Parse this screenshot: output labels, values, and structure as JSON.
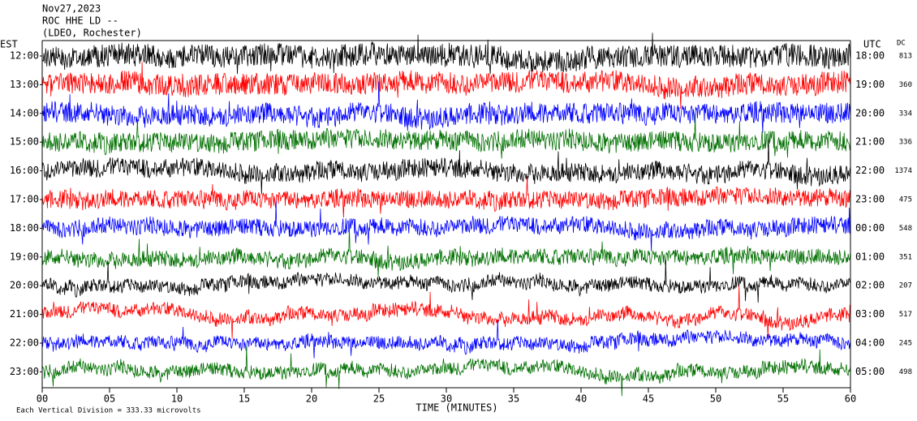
{
  "header": {
    "date": "Nov27,2023",
    "station": "ROC HHE LD --",
    "network": "(LDEO, Rochester)"
  },
  "chart_data": {
    "type": "helicorder",
    "left_axis_label": "EST",
    "right_axis_label": "UTC",
    "dc_label": "DC",
    "x_label": "TIME (MINUTES)",
    "footer": "Each Vertical Division =  333.33 microvolts",
    "xlim": [
      0,
      60
    ],
    "xticks": [
      {
        "value": 0,
        "label": "00"
      },
      {
        "value": 5,
        "label": "05"
      },
      10,
      15,
      20,
      25,
      30,
      35,
      40,
      45,
      50,
      55,
      60
    ],
    "rows": [
      {
        "est": "12:00",
        "utc": "18:00",
        "dc": 813,
        "color": "#000000"
      },
      {
        "est": "13:00",
        "utc": "19:00",
        "dc": 360,
        "color": "#ff0000"
      },
      {
        "est": "14:00",
        "utc": "20:00",
        "dc": 334,
        "color": "#0000ff"
      },
      {
        "est": "15:00",
        "utc": "21:00",
        "dc": 336,
        "color": "#007000"
      },
      {
        "est": "16:00",
        "utc": "22:00",
        "dc": 1374,
        "color": "#000000"
      },
      {
        "est": "17:00",
        "utc": "23:00",
        "dc": 475,
        "color": "#ff0000"
      },
      {
        "est": "18:00",
        "utc": "00:00",
        "dc": 548,
        "color": "#0000ff"
      },
      {
        "est": "19:00",
        "utc": "01:00",
        "dc": 351,
        "color": "#007000"
      },
      {
        "est": "20:00",
        "utc": "02:00",
        "dc": 207,
        "color": "#000000"
      },
      {
        "est": "21:00",
        "utc": "03:00",
        "dc": 517,
        "color": "#ff0000"
      },
      {
        "est": "22:00",
        "utc": "04:00",
        "dc": 245,
        "color": "#0000ff"
      },
      {
        "est": "23:00",
        "utc": "05:00",
        "dc": 498,
        "color": "#007000"
      }
    ]
  }
}
